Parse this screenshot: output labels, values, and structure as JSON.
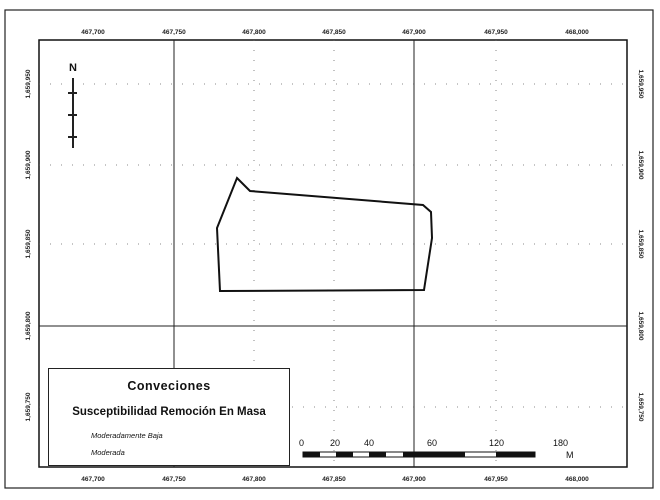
{
  "map": {
    "x_ticks": [
      "467,700",
      "467,750",
      "467,800",
      "467,850",
      "467,900",
      "467,950",
      "468,000"
    ],
    "y_ticks": [
      "1,659,950",
      "1,659,900",
      "1,659,850",
      "1,659,800",
      "1,659,750"
    ],
    "north_label": "N"
  },
  "legend": {
    "title": "Conveciones",
    "subtitle": "Susceptibilidad Remoción En Masa",
    "items": [
      "Moderadamente Baja",
      "Moderada"
    ]
  },
  "scale_bar": {
    "labels": [
      "0",
      "20",
      "40",
      "60",
      "120",
      "180"
    ],
    "unit": "M"
  }
}
